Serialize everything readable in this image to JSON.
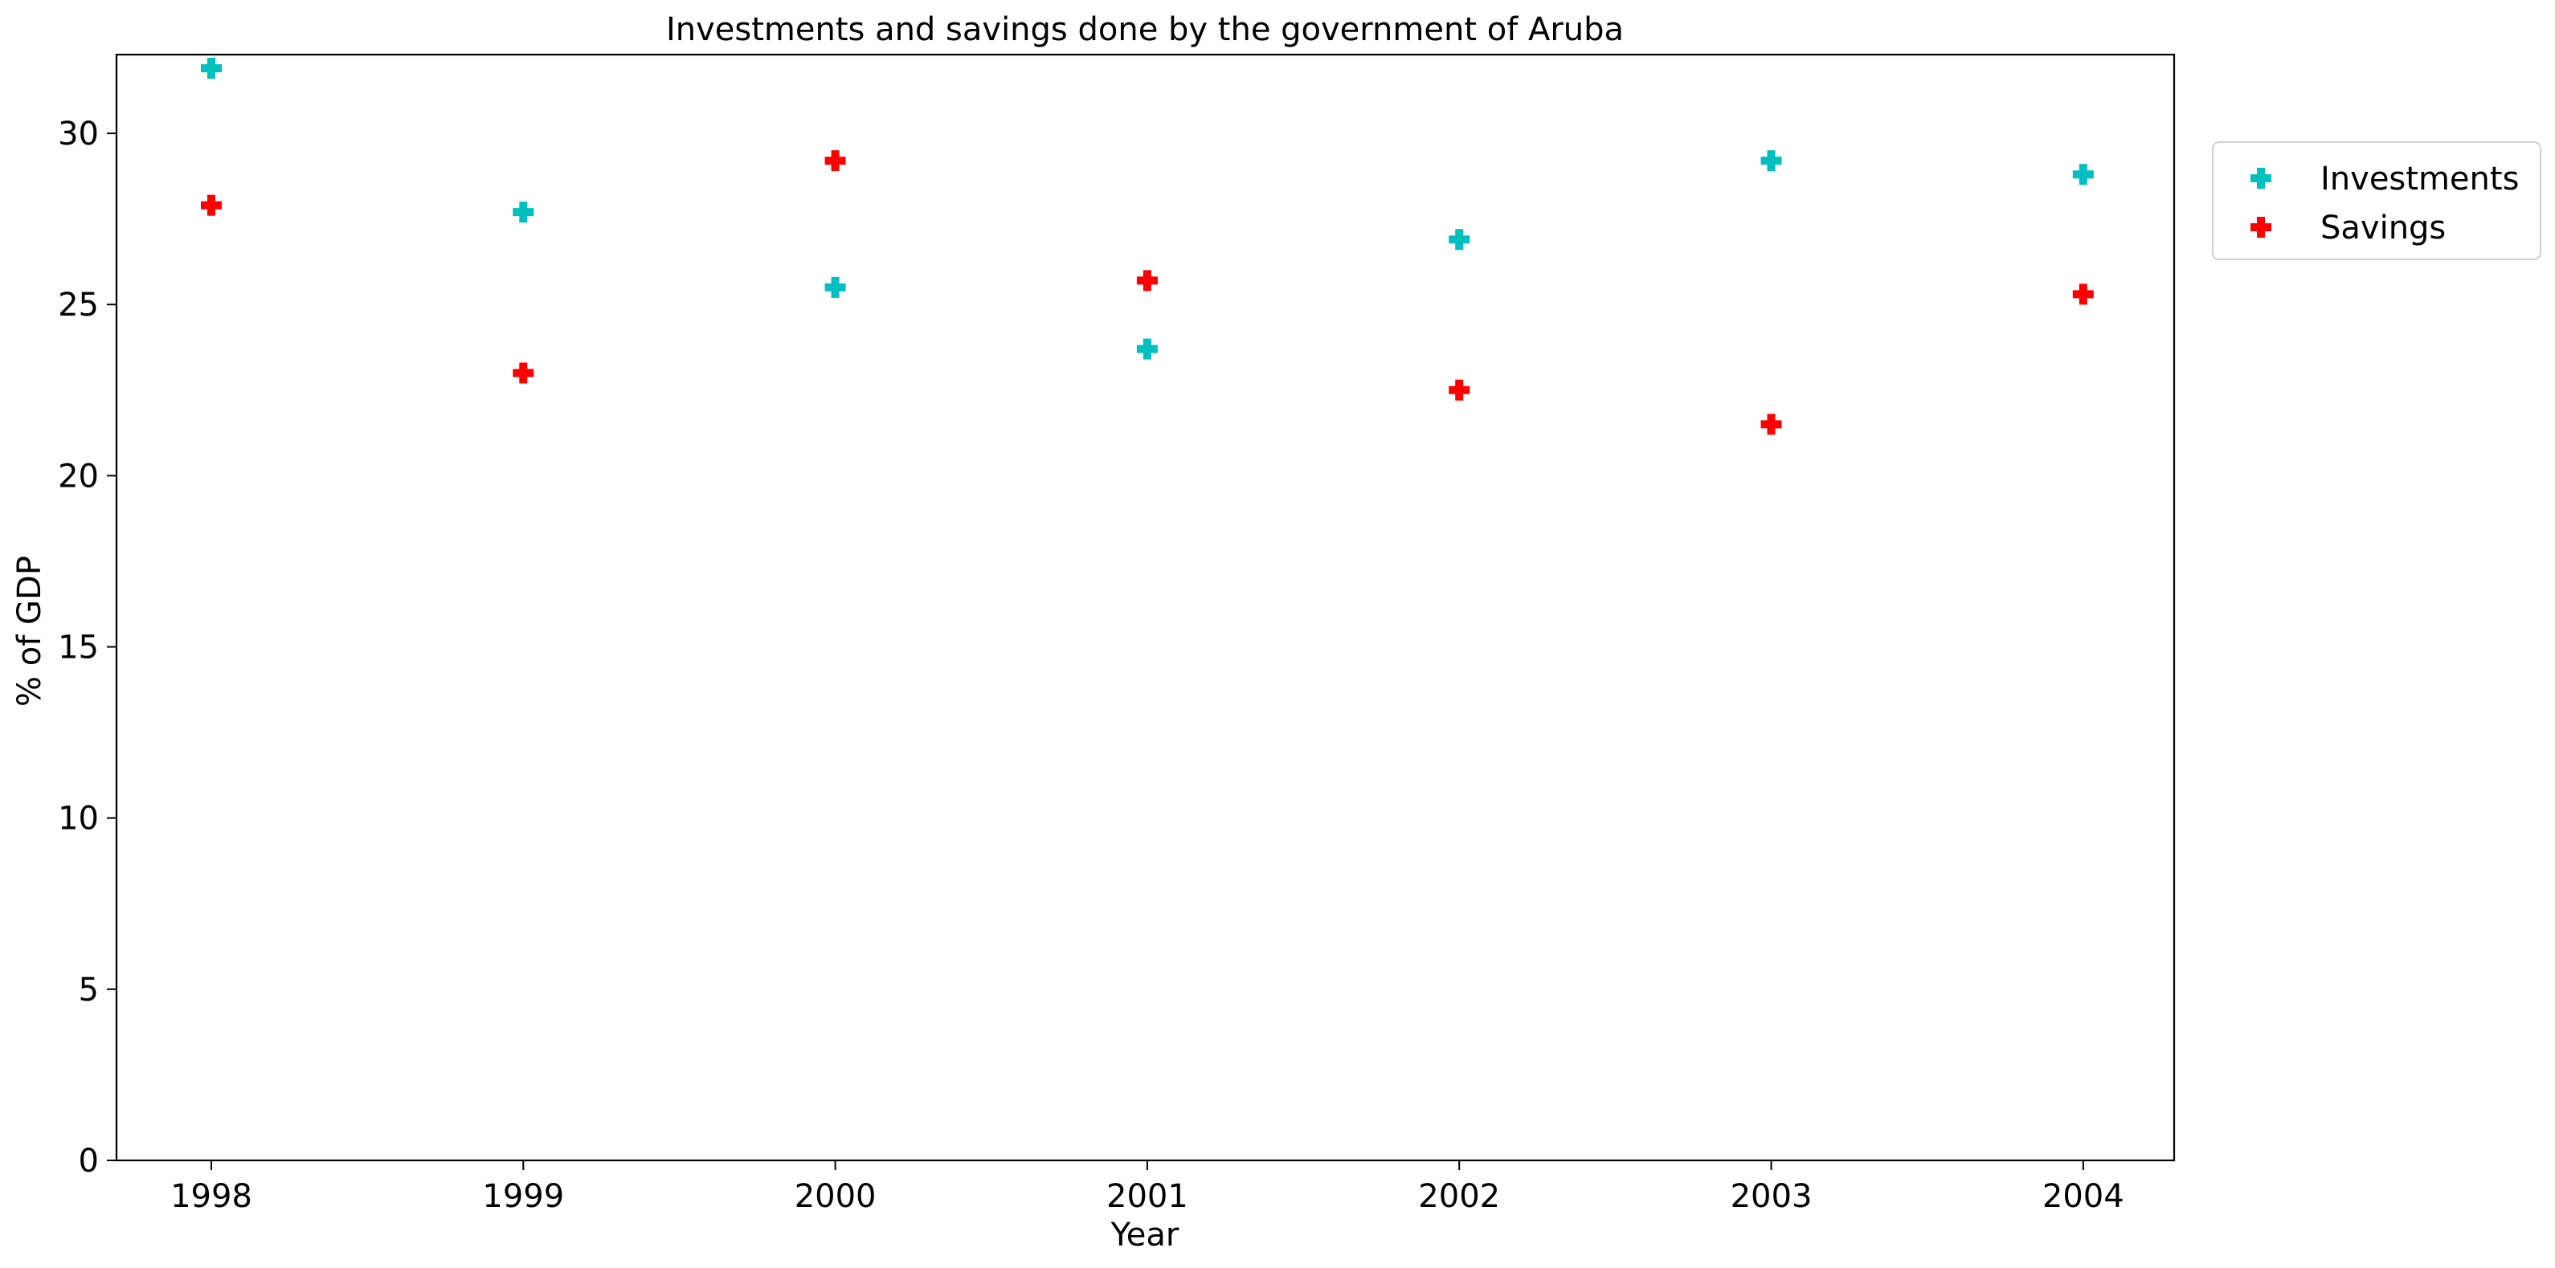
{
  "chart_data": {
    "type": "scatter",
    "title": "Investments and savings done by the government of Aruba",
    "xlabel": "Year",
    "ylabel": "% of GDP",
    "x": [
      "1998",
      "1999",
      "2000",
      "2001",
      "2002",
      "2003",
      "2004"
    ],
    "series": [
      {
        "name": "Investments",
        "color": "#00bfbf",
        "marker": "plus-filled",
        "values": [
          31.9,
          27.7,
          25.5,
          23.7,
          26.9,
          29.2,
          28.8
        ]
      },
      {
        "name": "Savings",
        "color": "#ff0000",
        "marker": "plus-filled",
        "values": [
          27.9,
          23.0,
          29.2,
          25.7,
          22.5,
          21.5,
          25.3
        ]
      }
    ],
    "ylim": [
      0,
      32.3
    ],
    "yticks": [
      "0",
      "5",
      "10",
      "15",
      "20",
      "25",
      "30"
    ],
    "grid": false,
    "legend_position": "outside-right-top"
  }
}
